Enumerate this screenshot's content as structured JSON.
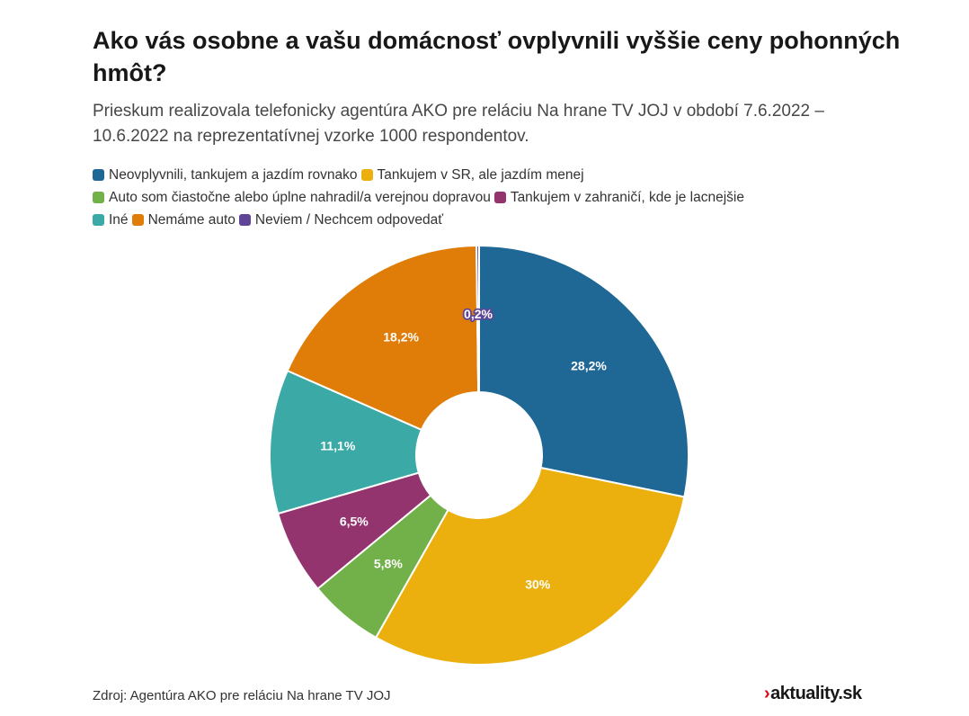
{
  "header": {
    "title": "Ako vás osobne a vašu domácnosť ovplyvnili vyššie ceny pohonných hmôt?",
    "subtitle": "Prieskum realizovala telefonicky agentúra AKO pre reláciu Na hrane TV JOJ v období 7.6.2022 – 10.6.2022 na reprezentatívnej vzorke 1000 respondentov."
  },
  "chart_data": {
    "type": "pie",
    "donut": true,
    "unit": "%",
    "legend_position": "top",
    "series": [
      {
        "name": "Neovplyvnili, tankujem a jazdím rovnako",
        "value": 28.2,
        "label": "28,2%",
        "color": "#1f6794"
      },
      {
        "name": "Tankujem v SR, ale jazdím menej",
        "value": 30,
        "label": "30%",
        "color": "#ebb00e"
      },
      {
        "name": "Auto som čiastočne alebo úplne nahradil/a verejnou dopravou",
        "value": 5.8,
        "label": "5,8%",
        "color": "#72b04a"
      },
      {
        "name": "Tankujem v zahraničí, kde je lacnejšie",
        "value": 6.5,
        "label": "6,5%",
        "color": "#94346e"
      },
      {
        "name": "Iné",
        "value": 11.1,
        "label": "11,1%",
        "color": "#3ba9a6"
      },
      {
        "name": "Nemáme auto",
        "value": 18.2,
        "label": "18,2%",
        "color": "#e07c08"
      },
      {
        "name": "Neviem / Nechcem odpovedať",
        "value": 0.2,
        "label": "0,2%",
        "color": "#5e4596"
      }
    ]
  },
  "footer": {
    "source": "Zdroj: Agentúra AKO pre reláciu Na hrane TV JOJ",
    "logo_text": "aktuality.sk",
    "logo_mark": "›"
  }
}
